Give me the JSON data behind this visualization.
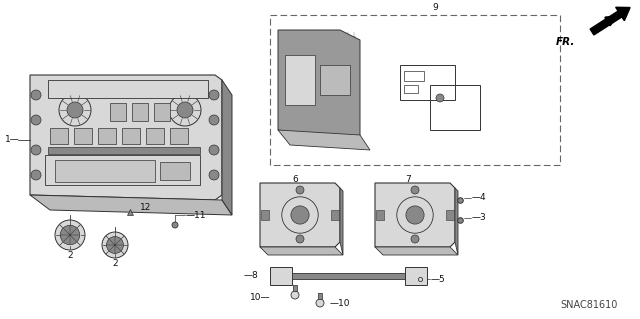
{
  "bg_color": "#ffffff",
  "line_color": "#333333",
  "gray_dark": "#444444",
  "gray_mid": "#888888",
  "gray_light": "#bbbbbb",
  "gray_lighter": "#d8d8d8",
  "label_color": "#111111",
  "fr_arrow_text": "FR.",
  "diagram_code": "SNAC81610",
  "figsize": [
    6.4,
    3.19
  ],
  "dpi": 100
}
